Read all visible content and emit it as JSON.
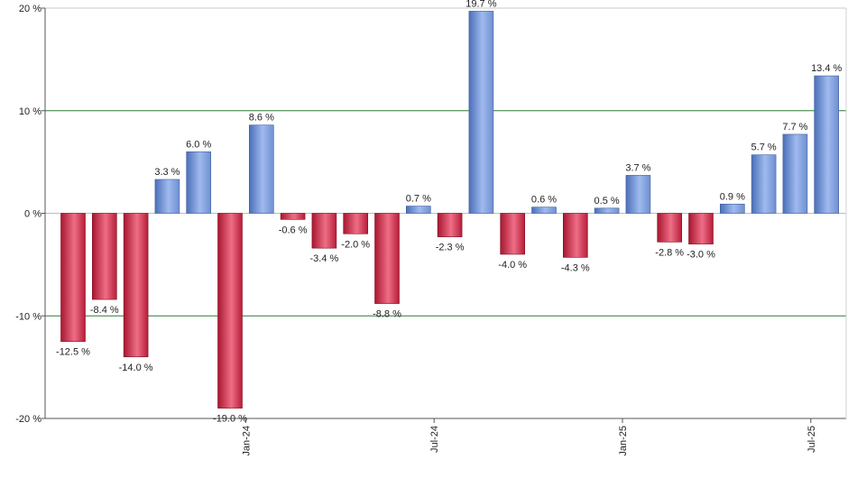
{
  "chart_data": {
    "type": "bar",
    "title": "",
    "xlabel": "",
    "ylabel": "",
    "ylim": [
      -20,
      20
    ],
    "y_ticks": [
      20,
      10,
      0,
      -10,
      -20
    ],
    "y_tick_labels": [
      "20 %",
      "10 %",
      "0 %",
      "-10 %",
      "-20 %"
    ],
    "x_tick_labels": [
      {
        "index": 5.5,
        "label": "Jan-24"
      },
      {
        "index": 11.5,
        "label": "Jul-24"
      },
      {
        "index": 17.5,
        "label": "Jan-25"
      },
      {
        "index": 23.5,
        "label": "Jul-25"
      }
    ],
    "grid": {
      "major_lines_at": [
        10,
        -10
      ],
      "color": "#2e7d32"
    },
    "colors": {
      "positive": "#6f93d8",
      "positive_light": "#b4c9f2",
      "negative": "#c2243f",
      "negative_light": "#f07f93"
    },
    "values": [
      -12.5,
      -8.4,
      -14.0,
      3.3,
      6.0,
      -19.0,
      8.6,
      -0.6,
      -3.4,
      -2.0,
      -8.8,
      0.7,
      -2.3,
      19.7,
      -4.0,
      0.6,
      -4.3,
      0.5,
      3.7,
      -2.8,
      -3.0,
      0.9,
      5.7,
      7.7,
      13.4
    ],
    "value_labels": [
      "-12.5 %",
      "-8.4 %",
      "-14.0 %",
      "3.3 %",
      "6.0 %",
      "-19.0 %",
      "8.6 %",
      "-0.6 %",
      "-3.4 %",
      "-2.0 %",
      "-8.8 %",
      "0.7 %",
      "-2.3 %",
      "19.7 %",
      "-4.0 %",
      "0.6 %",
      "-4.3 %",
      "0.5 %",
      "3.7 %",
      "-2.8 %",
      "-3.0 %",
      "0.9 %",
      "5.7 %",
      "7.7 %",
      "13.4 %"
    ]
  }
}
